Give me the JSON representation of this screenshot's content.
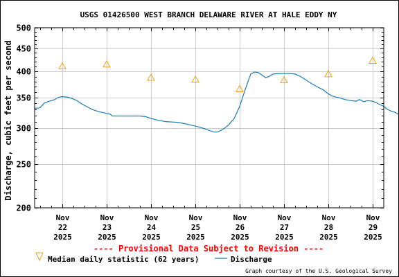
{
  "chart_data": {
    "type": "line",
    "title": "USGS 01426500 WEST BRANCH DELAWARE RIVER AT HALE EDDY NY",
    "ylabel": "Discharge, cubic feet per second",
    "xlabel": "",
    "y_scale": "log",
    "ylim": [
      200,
      500
    ],
    "xlim": [
      "2025-11-21 09:00",
      "2025-11-29 06:00"
    ],
    "y_ticks": [
      {
        "value": 200,
        "label": "200"
      },
      {
        "value": 250,
        "label": "250"
      },
      {
        "value": 300,
        "label": "300"
      },
      {
        "value": 350,
        "label": "350"
      },
      {
        "value": 400,
        "label": "400"
      },
      {
        "value": 450,
        "label": "450"
      },
      {
        "value": 500,
        "label": "500"
      }
    ],
    "x_ticks": [
      {
        "value": "2025-11-22 00:00",
        "label": [
          "Nov",
          "22",
          "2025"
        ]
      },
      {
        "value": "2025-11-23 00:00",
        "label": [
          "Nov",
          "23",
          "2025"
        ]
      },
      {
        "value": "2025-11-24 00:00",
        "label": [
          "Nov",
          "24",
          "2025"
        ]
      },
      {
        "value": "2025-11-25 00:00",
        "label": [
          "Nov",
          "25",
          "2025"
        ]
      },
      {
        "value": "2025-11-26 00:00",
        "label": [
          "Nov",
          "26",
          "2025"
        ]
      },
      {
        "value": "2025-11-27 00:00",
        "label": [
          "Nov",
          "27",
          "2025"
        ]
      },
      {
        "value": "2025-11-28 00:00",
        "label": [
          "Nov",
          "28",
          "2025"
        ]
      },
      {
        "value": "2025-11-29 00:00",
        "label": [
          "Nov",
          "29",
          "2025"
        ]
      }
    ],
    "grid": true,
    "legend_position": "bottom",
    "series": [
      {
        "name": "Discharge",
        "type": "line",
        "color": "#1a7ab5",
        "points": [
          [
            "2025-11-21 09:00",
            332
          ],
          [
            "2025-11-21 11:00",
            332
          ],
          [
            "2025-11-21 12:00",
            333
          ],
          [
            "2025-11-21 14:00",
            340
          ],
          [
            "2025-11-21 16:00",
            343
          ],
          [
            "2025-11-21 18:00",
            345
          ],
          [
            "2025-11-21 20:00",
            347
          ],
          [
            "2025-11-21 21:00",
            349
          ],
          [
            "2025-11-21 22:00",
            351
          ],
          [
            "2025-11-22 00:00",
            352
          ],
          [
            "2025-11-22 03:00",
            351
          ],
          [
            "2025-11-22 05:00",
            349
          ],
          [
            "2025-11-22 08:00",
            345
          ],
          [
            "2025-11-22 10:00",
            340
          ],
          [
            "2025-11-22 13:00",
            335
          ],
          [
            "2025-11-22 16:00",
            330
          ],
          [
            "2025-11-22 20:00",
            326
          ],
          [
            "2025-11-22 23:00",
            324
          ],
          [
            "2025-11-23 02:00",
            322
          ],
          [
            "2025-11-23 03:00",
            319
          ],
          [
            "2025-11-23 06:00",
            319
          ],
          [
            "2025-11-23 12:00",
            319
          ],
          [
            "2025-11-23 18:00",
            319
          ],
          [
            "2025-11-23 21:00",
            318
          ],
          [
            "2025-11-24 00:00",
            315
          ],
          [
            "2025-11-24 04:00",
            312
          ],
          [
            "2025-11-24 08:00",
            310
          ],
          [
            "2025-11-24 14:00",
            309
          ],
          [
            "2025-11-24 18:00",
            307
          ],
          [
            "2025-11-24 21:00",
            305
          ],
          [
            "2025-11-25 00:00",
            303
          ],
          [
            "2025-11-25 04:00",
            300
          ],
          [
            "2025-11-25 08:00",
            296
          ],
          [
            "2025-11-25 10:00",
            294
          ],
          [
            "2025-11-25 12:00",
            294
          ],
          [
            "2025-11-25 15:00",
            298
          ],
          [
            "2025-11-25 18:00",
            305
          ],
          [
            "2025-11-25 21:00",
            315
          ],
          [
            "2025-11-26 00:00",
            335
          ],
          [
            "2025-11-26 03:00",
            365
          ],
          [
            "2025-11-26 05:00",
            385
          ],
          [
            "2025-11-26 06:00",
            395
          ],
          [
            "2025-11-26 08:00",
            399
          ],
          [
            "2025-11-26 10:00",
            398
          ],
          [
            "2025-11-26 12:00",
            393
          ],
          [
            "2025-11-26 14:00",
            388
          ],
          [
            "2025-11-26 16:00",
            390
          ],
          [
            "2025-11-26 18:00",
            395
          ],
          [
            "2025-11-26 22:00",
            396
          ],
          [
            "2025-11-27 03:00",
            396
          ],
          [
            "2025-11-27 06:00",
            395
          ],
          [
            "2025-11-27 09:00",
            390
          ],
          [
            "2025-11-27 12:00",
            383
          ],
          [
            "2025-11-27 15:00",
            376
          ],
          [
            "2025-11-27 18:00",
            370
          ],
          [
            "2025-11-27 21:00",
            365
          ],
          [
            "2025-11-28 00:00",
            357
          ],
          [
            "2025-11-28 03:00",
            352
          ],
          [
            "2025-11-28 06:00",
            350
          ],
          [
            "2025-11-28 09:00",
            347
          ],
          [
            "2025-11-28 12:00",
            345
          ],
          [
            "2025-11-28 15:00",
            344
          ],
          [
            "2025-11-28 17:00",
            347
          ],
          [
            "2025-11-28 19:00",
            343
          ],
          [
            "2025-11-28 21:00",
            345
          ],
          [
            "2025-11-29 00:00",
            344
          ],
          [
            "2025-11-29 02:00",
            341
          ],
          [
            "2025-11-29 04:00",
            338
          ],
          [
            "2025-11-29 06:00",
            335
          ],
          [
            "2025-11-29 08:00",
            330
          ],
          [
            "2025-11-29 10:00",
            327
          ],
          [
            "2025-11-29 12:00",
            325
          ],
          [
            "2025-11-29 14:00",
            322
          ],
          [
            "2025-11-29 15:00",
            319
          ]
        ]
      },
      {
        "name": "Median daily statistic (62 years)",
        "type": "marker",
        "marker": "triangle",
        "color": "#e8a317",
        "points": [
          [
            "2025-11-22 00:00",
            411
          ],
          [
            "2025-11-23 00:00",
            415
          ],
          [
            "2025-11-24 00:00",
            388
          ],
          [
            "2025-11-25 00:00",
            384
          ],
          [
            "2025-11-26 00:00",
            366
          ],
          [
            "2025-11-27 00:00",
            383
          ],
          [
            "2025-11-28 00:00",
            395
          ],
          [
            "2025-11-29 00:00",
            423
          ]
        ]
      }
    ],
    "annotations": {
      "provisional": "---- Provisional Data Subject to Revision ----",
      "credit": "Graph courtesy of the U.S. Geological Survey"
    }
  }
}
